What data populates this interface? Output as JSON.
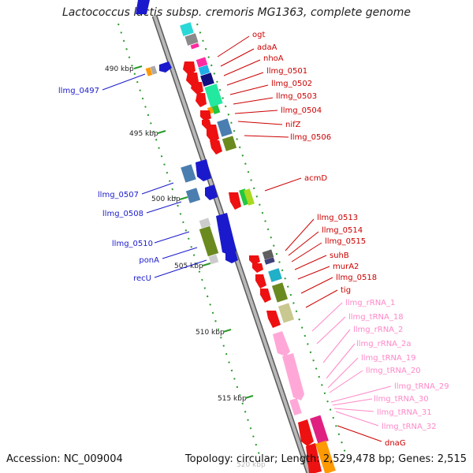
{
  "title": "Lactococcus lactis subsp. cremoris MG1363, complete genome",
  "accession": "Accession: NC_009004",
  "topology": "Topology: circular; Length: 2,529,478 bp; Genes: 2,515",
  "ticks": [
    "490 kbp",
    "495 kbp",
    "500 kbp",
    "505 kbp",
    "510 kbp",
    "515 kbp",
    "520 kbp"
  ],
  "colors": {
    "backbone": "#8a8a8a",
    "forward_label": "#cc0000",
    "reverse_label": "#1a1acc",
    "rna_label": "#ff88c8",
    "tick": "#2a9a2a"
  },
  "labels_right": [
    {
      "text": "ogt",
      "color": "#cc0000"
    },
    {
      "text": "adaA",
      "color": "#cc0000"
    },
    {
      "text": "nhoA",
      "color": "#cc0000"
    },
    {
      "text": "llmg_0501",
      "color": "#cc0000"
    },
    {
      "text": "llmg_0502",
      "color": "#cc0000"
    },
    {
      "text": "llmg_0503",
      "color": "#cc0000"
    },
    {
      "text": "llmg_0504",
      "color": "#cc0000"
    },
    {
      "text": "nifZ",
      "color": "#cc0000"
    },
    {
      "text": "llmg_0506",
      "color": "#cc0000"
    },
    {
      "text": "acmD",
      "color": "#cc0000"
    },
    {
      "text": "llmg_0513",
      "color": "#cc0000"
    },
    {
      "text": "llmg_0514",
      "color": "#cc0000"
    },
    {
      "text": "llmg_0515",
      "color": "#cc0000"
    },
    {
      "text": "suhB",
      "color": "#cc0000"
    },
    {
      "text": "murA2",
      "color": "#cc0000"
    },
    {
      "text": "llmg_0518",
      "color": "#cc0000"
    },
    {
      "text": "tig",
      "color": "#cc0000"
    },
    {
      "text": "llmg_rRNA_1",
      "color": "#ff88c8"
    },
    {
      "text": "llmg_tRNA_18",
      "color": "#ff88c8"
    },
    {
      "text": "llmg_rRNA_2",
      "color": "#ff88c8"
    },
    {
      "text": "llmg_rRNA_2a",
      "color": "#ff88c8"
    },
    {
      "text": "llmg_tRNA_19",
      "color": "#ff88c8"
    },
    {
      "text": "llmg_tRNA_20",
      "color": "#ff88c8"
    },
    {
      "text": "llmg_tRNA_29",
      "color": "#ff88c8"
    },
    {
      "text": "llmg_tRNA_30",
      "color": "#ff88c8"
    },
    {
      "text": "llmg_tRNA_31",
      "color": "#ff88c8"
    },
    {
      "text": "llmg_tRNA_32",
      "color": "#ff88c8"
    },
    {
      "text": "dnaG",
      "color": "#cc0000"
    }
  ],
  "labels_left": [
    {
      "text": "llmg_0497",
      "color": "#1a1acc"
    },
    {
      "text": "llmg_0507",
      "color": "#1a1acc"
    },
    {
      "text": "llmg_0508",
      "color": "#1a1acc"
    },
    {
      "text": "llmg_0510",
      "color": "#1a1acc"
    },
    {
      "text": "ponA",
      "color": "#1a1acc"
    },
    {
      "text": "recU",
      "color": "#1a1acc"
    }
  ]
}
